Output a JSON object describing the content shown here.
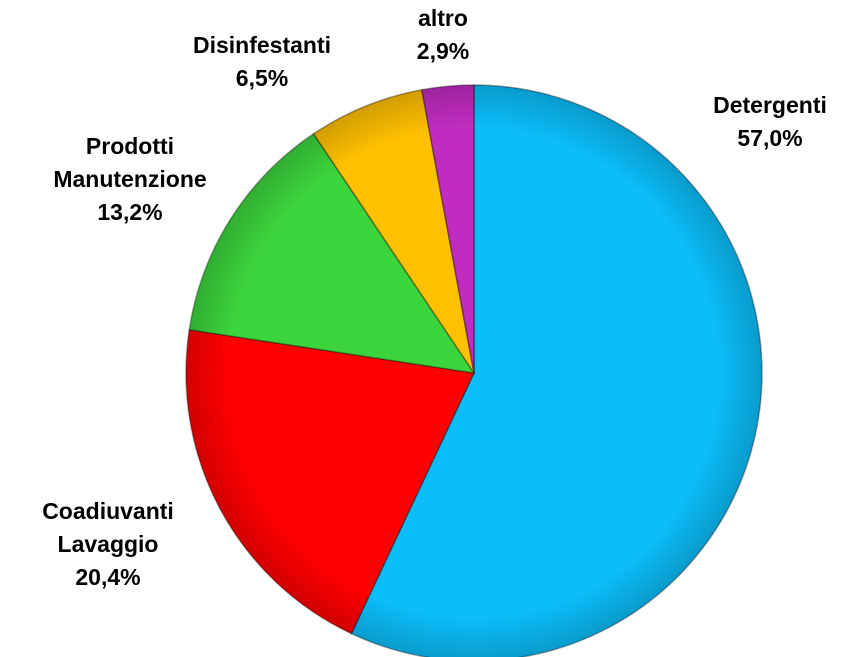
{
  "chart_data": {
    "type": "pie",
    "categories": [
      "Detergenti",
      "Coadiuvanti Lavaggio",
      "Prodotti Manutenzione",
      "Disinfestanti",
      "altro"
    ],
    "values": [
      57.0,
      20.4,
      13.2,
      6.5,
      2.9
    ],
    "value_labels": [
      "57,0%",
      "20,4%",
      "13,2%",
      "6,5%",
      "2,9%"
    ],
    "colors": [
      "#0bbdf8",
      "#ff0000",
      "#3cd43c",
      "#ffc000",
      "#c02cc0"
    ]
  }
}
